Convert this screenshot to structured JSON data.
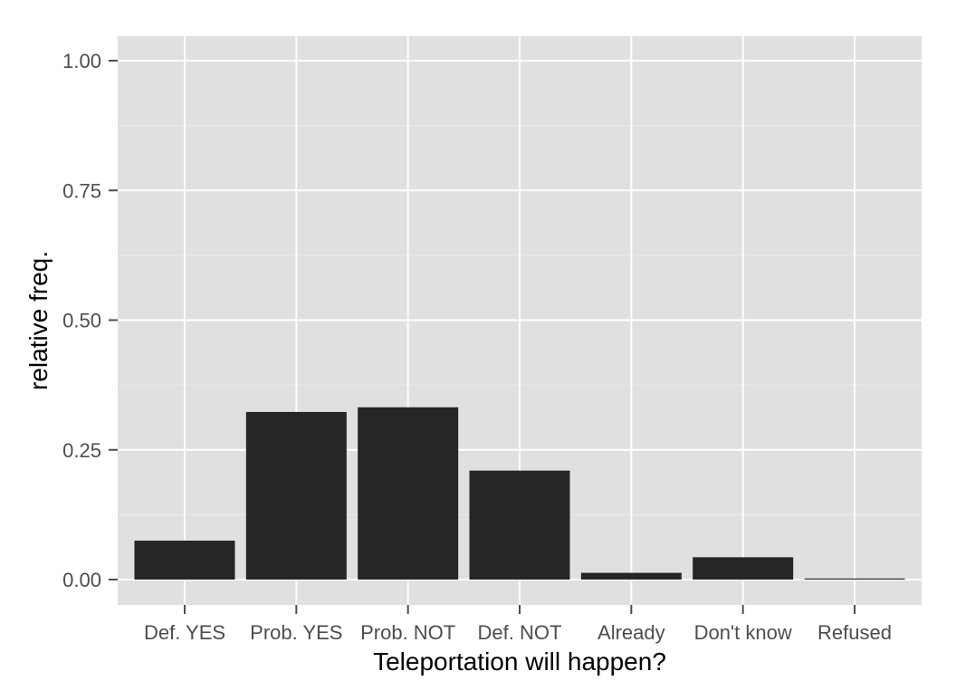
{
  "chart_data": {
    "type": "bar",
    "categories": [
      "Def. YES",
      "Prob. YES",
      "Prob. NOT",
      "Def. NOT",
      "Already",
      "Don't know",
      "Refused"
    ],
    "values": [
      0.075,
      0.323,
      0.332,
      0.21,
      0.013,
      0.043,
      0.002
    ],
    "xlabel": "Teleportation will happen?",
    "ylabel": "relative freq.",
    "ylim": [
      -0.048,
      1.048
    ],
    "yticks": [
      0.0,
      0.25,
      0.5,
      0.75,
      1.0
    ],
    "ytick_labels": [
      "0.00",
      "0.25",
      "0.50",
      "0.75",
      "1.00"
    ],
    "grid": true,
    "legend": "none",
    "colors": {
      "panel_background": "#e0e0e0",
      "grid_major": "#ffffff",
      "grid_minor": "#ebebeb",
      "bar_fill": "#262626",
      "tick_mark": "#4d4d4d"
    }
  }
}
